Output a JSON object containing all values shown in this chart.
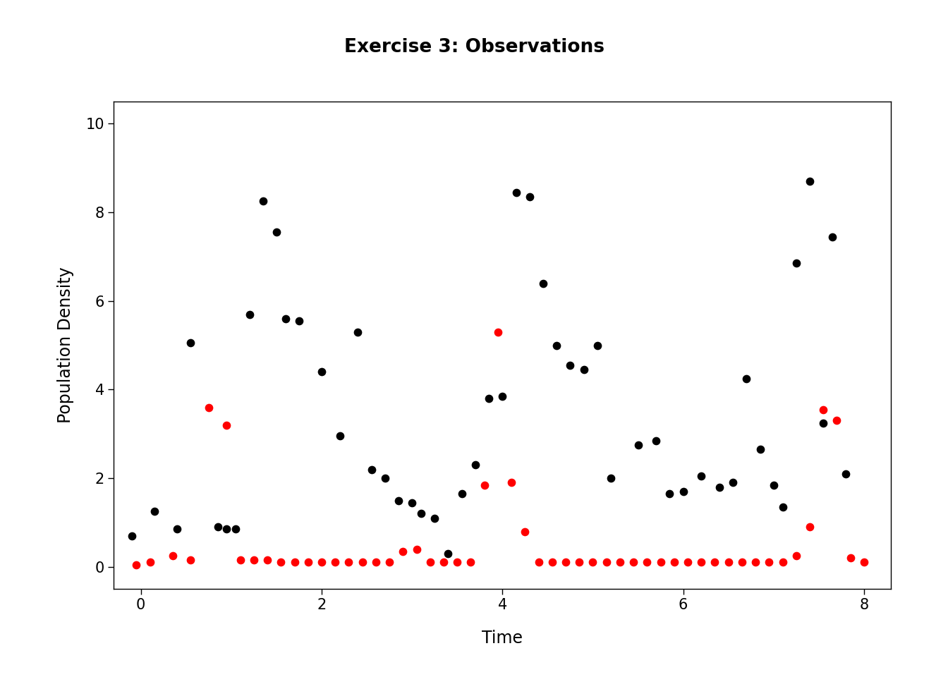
{
  "title": "Exercise 3: Observations",
  "xlabel": "Time",
  "ylabel": "Population Density",
  "xlim": [
    -0.3,
    8.3
  ],
  "ylim": [
    -0.5,
    10.5
  ],
  "xticks": [
    0,
    2,
    4,
    6,
    8
  ],
  "yticks": [
    0,
    2,
    4,
    6,
    8,
    10
  ],
  "black_x": [
    -0.1,
    0.15,
    0.4,
    0.55,
    0.85,
    0.95,
    1.05,
    1.2,
    1.35,
    1.5,
    1.6,
    1.75,
    2.0,
    2.2,
    2.4,
    2.55,
    2.7,
    2.85,
    3.0,
    3.1,
    3.25,
    3.4,
    3.55,
    3.7,
    3.85,
    4.0,
    4.15,
    4.3,
    4.45,
    4.6,
    4.75,
    4.9,
    5.05,
    5.2,
    5.5,
    5.7,
    5.85,
    6.0,
    6.2,
    6.4,
    6.55,
    6.7,
    6.85,
    7.0,
    7.1,
    7.25,
    7.4,
    7.55,
    7.65,
    7.8
  ],
  "black_y": [
    0.7,
    1.25,
    0.85,
    5.05,
    0.9,
    0.85,
    0.85,
    5.7,
    8.25,
    7.55,
    5.6,
    5.55,
    4.4,
    2.95,
    5.3,
    2.2,
    2.0,
    1.5,
    1.45,
    1.2,
    1.1,
    0.3,
    1.65,
    2.3,
    3.8,
    3.85,
    8.45,
    8.35,
    6.4,
    5.0,
    4.55,
    4.45,
    5.0,
    2.0,
    2.75,
    2.85,
    1.65,
    1.7,
    2.05,
    1.8,
    1.9,
    4.25,
    2.65,
    1.85,
    1.35,
    6.85,
    8.7,
    3.25,
    7.45,
    2.1
  ],
  "red_x": [
    -0.05,
    0.1,
    0.35,
    0.55,
    0.75,
    0.95,
    1.1,
    1.25,
    1.4,
    1.55,
    1.7,
    1.85,
    2.0,
    2.15,
    2.3,
    2.45,
    2.6,
    2.75,
    2.9,
    3.05,
    3.2,
    3.35,
    3.5,
    3.65,
    3.8,
    3.95,
    4.1,
    4.25,
    4.4,
    4.55,
    4.7,
    4.85,
    5.0,
    5.15,
    5.3,
    5.45,
    5.6,
    5.75,
    5.9,
    6.05,
    6.2,
    6.35,
    6.5,
    6.65,
    6.8,
    6.95,
    7.1,
    7.25,
    7.4,
    7.55,
    7.7,
    7.85,
    8.0
  ],
  "red_y": [
    0.05,
    0.1,
    0.25,
    0.15,
    3.6,
    3.2,
    0.15,
    0.15,
    0.15,
    0.1,
    0.1,
    0.1,
    0.1,
    0.1,
    0.1,
    0.1,
    0.1,
    0.1,
    0.35,
    0.4,
    0.1,
    0.1,
    0.1,
    0.1,
    1.85,
    5.3,
    1.9,
    0.8,
    0.1,
    0.1,
    0.1,
    0.1,
    0.1,
    0.1,
    0.1,
    0.1,
    0.1,
    0.1,
    0.1,
    0.1,
    0.1,
    0.1,
    0.1,
    0.1,
    0.1,
    0.1,
    0.1,
    0.25,
    0.9,
    3.55,
    3.3,
    0.2,
    0.1
  ],
  "point_size": 55,
  "black_color": "#000000",
  "red_color": "#ff0000",
  "background_color": "#ffffff",
  "title_fontsize": 19,
  "label_fontsize": 17,
  "tick_fontsize": 15
}
